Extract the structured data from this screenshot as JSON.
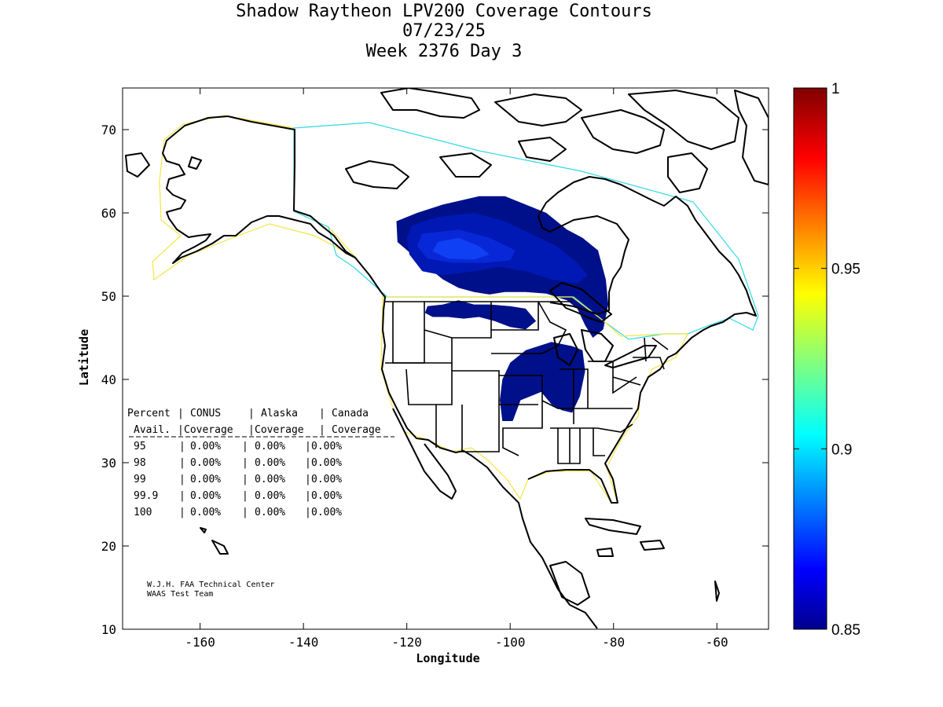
{
  "titles": {
    "line1": "Shadow Raytheon LPV200 Coverage Contours",
    "line2": "07/23/25",
    "line3": "Week 2376 Day 3"
  },
  "axes": {
    "xlabel": "Longitude",
    "ylabel": "Latitude",
    "xlim": [
      -175,
      -50
    ],
    "ylim": [
      10,
      75
    ],
    "xticks": [
      -160,
      -140,
      -120,
      -100,
      -80,
      -60
    ],
    "yticks": [
      10,
      20,
      30,
      40,
      50,
      60,
      70
    ]
  },
  "colorbar": {
    "min": 0.85,
    "max": 1,
    "ticks": [
      {
        "value": 0.85,
        "label": "0.85"
      },
      {
        "value": 0.9,
        "label": "0.9"
      },
      {
        "value": 0.95,
        "label": "0.95"
      },
      {
        "value": 1,
        "label": "1"
      }
    ],
    "colormap": "jet"
  },
  "contours": {
    "colors": {
      "level1": "#00108a",
      "level2": "#0018b4",
      "level3": "#0828d8",
      "level4": "#1040f4"
    },
    "regions": [
      {
        "id": "canada-main",
        "level": 1,
        "lonlat": [
          [
            -122,
            59
          ],
          [
            -118,
            60
          ],
          [
            -113,
            61
          ],
          [
            -106,
            62
          ],
          [
            -101,
            62
          ],
          [
            -97,
            61
          ],
          [
            -93,
            60
          ],
          [
            -89,
            58
          ],
          [
            -86,
            57
          ],
          [
            -83,
            55.5
          ],
          [
            -81.5,
            52
          ],
          [
            -81,
            49
          ],
          [
            -82,
            46
          ],
          [
            -84,
            45
          ],
          [
            -85.5,
            46.5
          ],
          [
            -87,
            48.5
          ],
          [
            -89,
            49.5
          ],
          [
            -93,
            50.3
          ],
          [
            -97,
            50.5
          ],
          [
            -101,
            50.5
          ],
          [
            -104,
            50.2
          ],
          [
            -107,
            50.5
          ],
          [
            -110,
            51
          ],
          [
            -113,
            52
          ],
          [
            -116,
            53.5
          ],
          [
            -119,
            55
          ],
          [
            -121.8,
            56.5
          ]
        ]
      },
      {
        "id": "canada-mid",
        "level": 2,
        "lonlat": [
          [
            -119,
            58.5
          ],
          [
            -114,
            59.5
          ],
          [
            -107,
            60
          ],
          [
            -101,
            59
          ],
          [
            -96,
            57.5
          ],
          [
            -91,
            56
          ],
          [
            -87,
            54
          ],
          [
            -85,
            52.5
          ],
          [
            -87,
            51.5
          ],
          [
            -92,
            52
          ],
          [
            -97,
            53
          ],
          [
            -102,
            53.5
          ],
          [
            -107,
            53
          ],
          [
            -113,
            52.5
          ],
          [
            -117,
            53
          ],
          [
            -119.5,
            55
          ],
          [
            -120,
            57
          ]
        ]
      },
      {
        "id": "canada-inner",
        "level": 3,
        "lonlat": [
          [
            -117,
            57.5
          ],
          [
            -110,
            58
          ],
          [
            -104,
            57
          ],
          [
            -99,
            55.5
          ],
          [
            -100,
            54.3
          ],
          [
            -105,
            54
          ],
          [
            -111,
            54
          ],
          [
            -116,
            54.5
          ],
          [
            -118,
            56
          ]
        ]
      },
      {
        "id": "canada-core",
        "level": 4,
        "lonlat": [
          [
            -114,
            56.5
          ],
          [
            -110,
            57
          ],
          [
            -106,
            56
          ],
          [
            -104,
            55
          ],
          [
            -107,
            54.4
          ],
          [
            -112,
            54.5
          ],
          [
            -115,
            55.4
          ]
        ]
      },
      {
        "id": "montana-lobe",
        "level": 1,
        "lonlat": [
          [
            -116,
            48.8
          ],
          [
            -113,
            49
          ],
          [
            -110,
            49.5
          ],
          [
            -107,
            49
          ],
          [
            -104,
            49
          ],
          [
            -100,
            48.8
          ],
          [
            -97,
            48.5
          ],
          [
            -95,
            47
          ],
          [
            -97,
            46
          ],
          [
            -100,
            46.3
          ],
          [
            -103,
            47
          ],
          [
            -106,
            47.5
          ],
          [
            -109,
            47.3
          ],
          [
            -112,
            47.5
          ],
          [
            -115,
            47.5
          ],
          [
            -116.5,
            48
          ]
        ]
      },
      {
        "id": "midwest-lobe",
        "level": 1,
        "lonlat": [
          [
            -97,
            43.5
          ],
          [
            -92,
            44.5
          ],
          [
            -88,
            44
          ],
          [
            -86,
            43.5
          ],
          [
            -85.5,
            41
          ],
          [
            -86.5,
            38
          ],
          [
            -88,
            36
          ],
          [
            -90,
            36.3
          ],
          [
            -92,
            37
          ],
          [
            -94,
            38.5
          ],
          [
            -96,
            38
          ],
          [
            -98,
            37.5
          ],
          [
            -99.5,
            35
          ],
          [
            -101.5,
            35
          ],
          [
            -102,
            37.5
          ],
          [
            -101.5,
            40
          ],
          [
            -100,
            42
          ]
        ]
      }
    ]
  },
  "table": {
    "header_row1": [
      "Percent",
      "CONUS",
      "Alaska",
      "Canada"
    ],
    "header_row2": [
      "Avail.",
      "Coverage",
      "Coverage",
      "Coverage"
    ],
    "rows": [
      [
        "95",
        "0.00%",
        "0.00%",
        "0.00%"
      ],
      [
        "98",
        "0.00%",
        "0.00%",
        "0.00%"
      ],
      [
        "99",
        "0.00%",
        "0.00%",
        "0.00%"
      ],
      [
        "99.9",
        "0.00%",
        "0.00%",
        "0.00%"
      ],
      [
        "100",
        "0.00%",
        "0.00%",
        "0.00%"
      ]
    ]
  },
  "credits": {
    "line1": "W.J.H. FAA Technical Center",
    "line2": "WAAS Test Team"
  }
}
